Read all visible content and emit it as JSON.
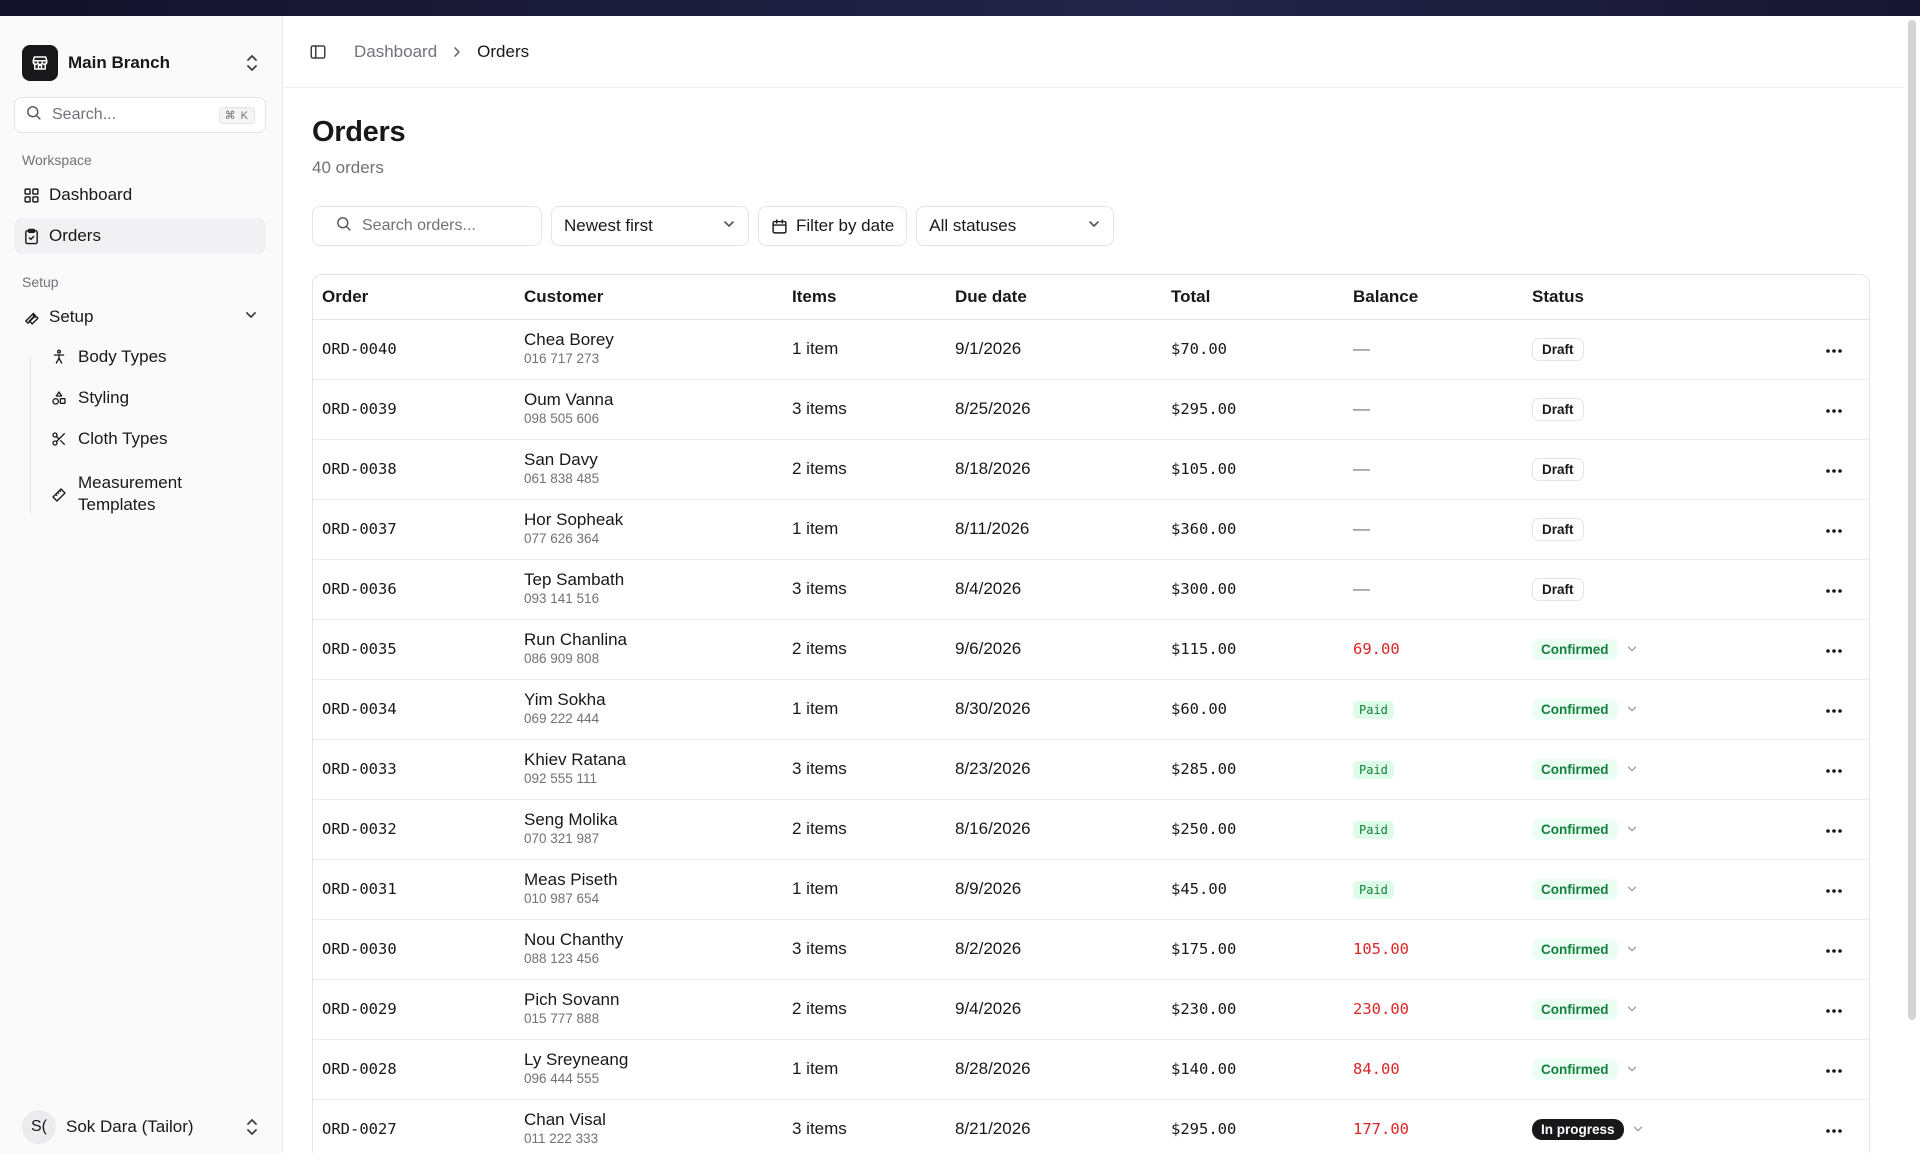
{
  "sidebar": {
    "branch": "Main Branch",
    "search_placeholder": "Search...",
    "search_shortcut": "⌘ K",
    "workspace_label": "Workspace",
    "nav": [
      {
        "label": "Dashboard",
        "icon": "grid-icon"
      },
      {
        "label": "Orders",
        "icon": "clipboard-icon",
        "active": true
      }
    ],
    "setup_label": "Setup",
    "setup_group": "Setup",
    "setup_items": [
      {
        "label": "Body Types",
        "icon": "person-icon"
      },
      {
        "label": "Styling",
        "icon": "shapes-icon"
      },
      {
        "label": "Cloth Types",
        "icon": "scissors-icon"
      },
      {
        "label": "Measurement Templates",
        "icon": "ruler-icon"
      }
    ],
    "user": {
      "initials": "S(",
      "name": "Sok Dara (Tailor)"
    }
  },
  "header": {
    "breadcrumb_parent": "Dashboard",
    "breadcrumb_current": "Orders"
  },
  "page": {
    "title": "Orders",
    "subtitle": "40 orders"
  },
  "toolbar": {
    "search_placeholder": "Search orders...",
    "sort_value": "Newest first",
    "date_filter": "Filter by date",
    "status_value": "All statuses"
  },
  "table": {
    "headers": [
      "Order",
      "Customer",
      "Items",
      "Due date",
      "Total",
      "Balance",
      "Status"
    ],
    "rows": [
      {
        "order": "ORD-0040",
        "name": "Chea Borey",
        "phone": "016 717 273",
        "items": "1 item",
        "due": "9/1/2026",
        "total": "$70.00",
        "balance": "—",
        "status": "Draft"
      },
      {
        "order": "ORD-0039",
        "name": "Oum Vanna",
        "phone": "098 505 606",
        "items": "3 items",
        "due": "8/25/2026",
        "total": "$295.00",
        "balance": "—",
        "status": "Draft"
      },
      {
        "order": "ORD-0038",
        "name": "San Davy",
        "phone": "061 838 485",
        "items": "2 items",
        "due": "8/18/2026",
        "total": "$105.00",
        "balance": "—",
        "status": "Draft"
      },
      {
        "order": "ORD-0037",
        "name": "Hor Sopheak",
        "phone": "077 626 364",
        "items": "1 item",
        "due": "8/11/2026",
        "total": "$360.00",
        "balance": "—",
        "status": "Draft"
      },
      {
        "order": "ORD-0036",
        "name": "Tep Sambath",
        "phone": "093 141 516",
        "items": "3 items",
        "due": "8/4/2026",
        "total": "$300.00",
        "balance": "—",
        "status": "Draft"
      },
      {
        "order": "ORD-0035",
        "name": "Run Chanlina",
        "phone": "086 909 808",
        "items": "2 items",
        "due": "9/6/2026",
        "total": "$115.00",
        "balance": "69.00",
        "status": "Confirmed"
      },
      {
        "order": "ORD-0034",
        "name": "Yim Sokha",
        "phone": "069 222 444",
        "items": "1 item",
        "due": "8/30/2026",
        "total": "$60.00",
        "balance": "Paid",
        "status": "Confirmed"
      },
      {
        "order": "ORD-0033",
        "name": "Khiev Ratana",
        "phone": "092 555 111",
        "items": "3 items",
        "due": "8/23/2026",
        "total": "$285.00",
        "balance": "Paid",
        "status": "Confirmed"
      },
      {
        "order": "ORD-0032",
        "name": "Seng Molika",
        "phone": "070 321 987",
        "items": "2 items",
        "due": "8/16/2026",
        "total": "$250.00",
        "balance": "Paid",
        "status": "Confirmed"
      },
      {
        "order": "ORD-0031",
        "name": "Meas Piseth",
        "phone": "010 987 654",
        "items": "1 item",
        "due": "8/9/2026",
        "total": "$45.00",
        "balance": "Paid",
        "status": "Confirmed"
      },
      {
        "order": "ORD-0030",
        "name": "Nou Chanthy",
        "phone": "088 123 456",
        "items": "3 items",
        "due": "8/2/2026",
        "total": "$175.00",
        "balance": "105.00",
        "status": "Confirmed"
      },
      {
        "order": "ORD-0029",
        "name": "Pich Sovann",
        "phone": "015 777 888",
        "items": "2 items",
        "due": "9/4/2026",
        "total": "$230.00",
        "balance": "230.00",
        "status": "Confirmed"
      },
      {
        "order": "ORD-0028",
        "name": "Ly Sreyneang",
        "phone": "096 444 555",
        "items": "1 item",
        "due": "8/28/2026",
        "total": "$140.00",
        "balance": "84.00",
        "status": "Confirmed"
      },
      {
        "order": "ORD-0027",
        "name": "Chan Visal",
        "phone": "011 222 333",
        "items": "3 items",
        "due": "8/21/2026",
        "total": "$295.00",
        "balance": "177.00",
        "status": "In progress"
      }
    ]
  },
  "colors": {
    "accent": "#18181b",
    "balance_due": "#dc2626",
    "paid": "#15803d",
    "confirmed": "#15803d"
  }
}
